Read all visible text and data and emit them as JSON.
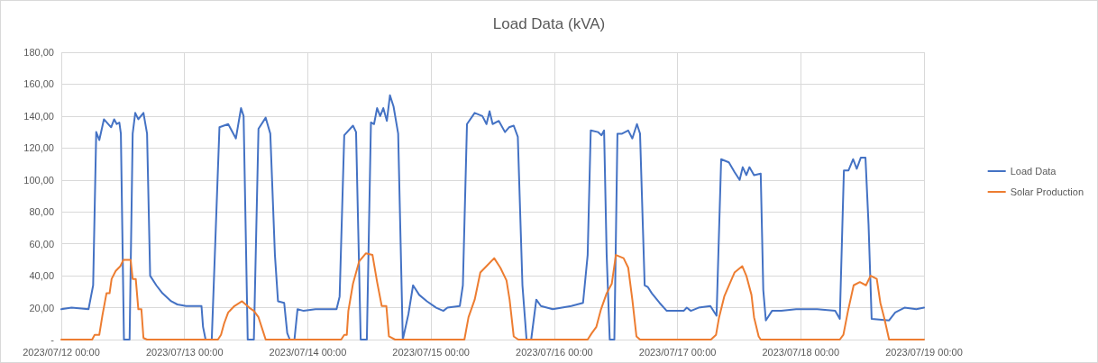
{
  "chart_data": {
    "type": "line",
    "title": "Load Data (kVA)",
    "xlim": [
      "2023-07-12T00:00",
      "2023-07-19T00:00"
    ],
    "xticks": [
      {
        "value": "2023-07-12T00:00",
        "label": "2023/07/12 00:00"
      },
      {
        "value": "2023-07-13T00:00",
        "label": "2023/07/13 00:00"
      },
      {
        "value": "2023-07-14T00:00",
        "label": "2023/07/14 00:00"
      },
      {
        "value": "2023-07-15T00:00",
        "label": "2023/07/15 00:00"
      },
      {
        "value": "2023-07-16T00:00",
        "label": "2023/07/16 00:00"
      },
      {
        "value": "2023-07-17T00:00",
        "label": "2023/07/17 00:00"
      },
      {
        "value": "2023-07-18T00:00",
        "label": "2023/07/18 00:00"
      },
      {
        "value": "2023-07-19T00:00",
        "label": "2023/07/19 00:00"
      }
    ],
    "ylim": [
      0,
      180
    ],
    "yticks": [
      {
        "value": 0,
        "label": "-"
      },
      {
        "value": 20,
        "label": "20,00"
      },
      {
        "value": 40,
        "label": "40,00"
      },
      {
        "value": 60,
        "label": "60,00"
      },
      {
        "value": 80,
        "label": "80,00"
      },
      {
        "value": 100,
        "label": "100,00"
      },
      {
        "value": 120,
        "label": "120,00"
      },
      {
        "value": 140,
        "label": "140,00"
      },
      {
        "value": 160,
        "label": "160,00"
      },
      {
        "value": 180,
        "label": "180,00"
      }
    ],
    "grid": true,
    "legend": "right",
    "marker": "none",
    "line_style": "solid",
    "series": [
      {
        "name": "Load Data",
        "color": "#4472c4",
        "x": [
          "2023-07-12T00:00",
          "2023-07-12T02:00",
          "2023-07-12T05:18",
          "2023-07-12T06:12",
          "2023-07-12T06:48",
          "2023-07-12T07:24",
          "2023-07-12T08:18",
          "2023-07-12T09:42",
          "2023-07-12T10:18",
          "2023-07-12T10:48",
          "2023-07-12T11:18",
          "2023-07-12T11:36",
          "2023-07-12T12:12",
          "2023-07-12T13:18",
          "2023-07-12T13:54",
          "2023-07-12T14:24",
          "2023-07-12T15:00",
          "2023-07-12T16:00",
          "2023-07-12T16:42",
          "2023-07-12T17:18",
          "2023-07-12T18:30",
          "2023-07-12T19:42",
          "2023-07-12T21:24",
          "2023-07-12T22:36",
          "2023-07-13T00:18",
          "2023-07-13T03:18",
          "2023-07-13T03:36",
          "2023-07-13T04:06",
          "2023-07-13T05:18",
          "2023-07-13T06:48",
          "2023-07-13T08:30",
          "2023-07-13T10:00",
          "2023-07-13T11:00",
          "2023-07-13T11:30",
          "2023-07-13T12:18",
          "2023-07-13T13:30",
          "2023-07-13T14:24",
          "2023-07-13T15:48",
          "2023-07-13T16:42",
          "2023-07-13T17:36",
          "2023-07-13T18:12",
          "2023-07-13T19:24",
          "2023-07-13T20:00",
          "2023-07-13T20:30",
          "2023-07-13T21:24",
          "2023-07-13T22:00",
          "2023-07-13T23:12",
          "2023-07-14T01:30",
          "2023-07-14T05:36",
          "2023-07-14T06:12",
          "2023-07-14T07:06",
          "2023-07-14T08:48",
          "2023-07-14T09:24",
          "2023-07-14T10:18",
          "2023-07-14T11:30",
          "2023-07-14T12:18",
          "2023-07-14T12:54",
          "2023-07-14T13:30",
          "2023-07-14T14:06",
          "2023-07-14T14:42",
          "2023-07-14T15:24",
          "2023-07-14T16:00",
          "2023-07-14T16:42",
          "2023-07-14T17:36",
          "2023-07-14T18:30",
          "2023-07-14T19:36",
          "2023-07-14T20:30",
          "2023-07-14T21:42",
          "2023-07-14T23:12",
          "2023-07-15T01:00",
          "2023-07-15T02:24",
          "2023-07-15T03:12",
          "2023-07-15T05:36",
          "2023-07-15T06:12",
          "2023-07-15T07:00",
          "2023-07-15T08:30",
          "2023-07-15T10:00",
          "2023-07-15T10:48",
          "2023-07-15T11:24",
          "2023-07-15T12:00",
          "2023-07-15T13:12",
          "2023-07-15T14:24",
          "2023-07-15T15:12",
          "2023-07-15T16:06",
          "2023-07-15T16:54",
          "2023-07-15T17:48",
          "2023-07-15T18:36",
          "2023-07-15T19:30",
          "2023-07-15T20:30",
          "2023-07-15T21:24",
          "2023-07-15T23:42",
          "2023-07-16T03:18",
          "2023-07-16T05:36",
          "2023-07-16T06:30",
          "2023-07-16T07:06",
          "2023-07-16T08:30",
          "2023-07-16T09:12",
          "2023-07-16T09:42",
          "2023-07-16T10:12",
          "2023-07-16T10:48",
          "2023-07-16T11:42",
          "2023-07-16T12:18",
          "2023-07-16T13:12",
          "2023-07-16T14:24",
          "2023-07-16T15:12",
          "2023-07-16T16:06",
          "2023-07-16T16:42",
          "2023-07-16T17:36",
          "2023-07-16T18:12",
          "2023-07-16T19:00",
          "2023-07-16T20:30",
          "2023-07-16T21:54",
          "2023-07-17T01:12",
          "2023-07-17T01:48",
          "2023-07-17T02:36",
          "2023-07-17T04:06",
          "2023-07-17T06:24",
          "2023-07-17T07:36",
          "2023-07-17T08:30",
          "2023-07-17T10:00",
          "2023-07-17T11:06",
          "2023-07-17T12:06",
          "2023-07-17T12:42",
          "2023-07-17T13:24",
          "2023-07-17T14:00",
          "2023-07-17T14:54",
          "2023-07-17T16:12",
          "2023-07-17T16:42",
          "2023-07-17T17:12",
          "2023-07-17T18:24",
          "2023-07-17T20:12",
          "2023-07-17T23:06",
          "2023-07-18T03:12",
          "2023-07-18T06:42",
          "2023-07-18T07:36",
          "2023-07-18T08:24",
          "2023-07-18T09:18",
          "2023-07-18T10:12",
          "2023-07-18T10:54",
          "2023-07-18T11:42",
          "2023-07-18T12:36",
          "2023-07-18T13:12",
          "2023-07-18T13:48",
          "2023-07-18T17:12",
          "2023-07-18T18:24",
          "2023-07-18T20:12",
          "2023-07-18T22:30",
          "2023-07-19T00:00"
        ],
        "values": [
          19,
          20,
          19,
          34,
          130,
          125,
          138,
          133,
          138,
          135,
          136,
          129,
          0,
          0,
          129,
          142,
          138,
          142,
          129,
          40,
          34,
          29,
          24,
          22,
          21,
          21,
          8,
          0,
          0,
          133,
          135,
          126,
          145,
          140,
          0,
          0,
          132,
          139,
          129,
          53,
          24,
          23,
          4,
          0,
          0,
          19,
          18,
          19,
          19,
          27,
          128,
          134,
          130,
          0,
          0,
          136,
          135,
          145,
          140,
          145,
          137,
          153,
          146,
          129,
          0,
          16,
          34,
          28,
          24,
          20,
          18,
          20,
          21,
          34,
          135,
          142,
          140,
          135,
          143,
          135,
          137,
          130,
          133,
          134,
          127,
          34,
          0,
          0,
          25,
          21,
          19,
          21,
          23,
          53,
          131,
          130,
          128,
          131,
          53,
          0,
          0,
          129,
          129,
          131,
          126,
          135,
          129,
          34,
          33,
          29,
          23,
          18,
          18,
          20,
          18,
          20,
          21,
          15,
          113,
          111,
          105,
          100,
          108,
          103,
          108,
          103,
          104,
          31,
          12,
          18,
          18,
          19,
          19,
          18,
          13,
          106,
          106,
          113,
          107,
          114,
          114,
          72,
          13,
          12,
          17,
          20,
          19,
          20
        ]
      },
      {
        "name": "Solar Production",
        "color": "#ed7d31",
        "x": [
          "2023-07-12T00:00",
          "2023-07-12T06:00",
          "2023-07-12T06:30",
          "2023-07-12T07:24",
          "2023-07-12T08:00",
          "2023-07-12T08:48",
          "2023-07-12T09:24",
          "2023-07-12T09:48",
          "2023-07-12T10:36",
          "2023-07-12T11:30",
          "2023-07-12T12:06",
          "2023-07-12T13:30",
          "2023-07-12T13:54",
          "2023-07-12T14:30",
          "2023-07-12T15:00",
          "2023-07-12T15:36",
          "2023-07-12T16:00",
          "2023-07-12T16:42",
          "2023-07-13T06:30",
          "2023-07-13T07:06",
          "2023-07-13T07:42",
          "2023-07-13T08:30",
          "2023-07-13T09:42",
          "2023-07-13T11:12",
          "2023-07-13T12:36",
          "2023-07-13T13:30",
          "2023-07-13T14:24",
          "2023-07-13T15:18",
          "2023-07-13T15:48",
          "2023-07-14T06:30",
          "2023-07-14T07:06",
          "2023-07-14T07:36",
          "2023-07-14T07:54",
          "2023-07-14T08:48",
          "2023-07-14T10:00",
          "2023-07-14T11:18",
          "2023-07-14T12:36",
          "2023-07-14T13:30",
          "2023-07-14T14:24",
          "2023-07-14T15:18",
          "2023-07-14T15:48",
          "2023-07-14T17:00",
          "2023-07-15T06:30",
          "2023-07-15T07:18",
          "2023-07-15T08:30",
          "2023-07-15T09:36",
          "2023-07-15T10:48",
          "2023-07-15T12:18",
          "2023-07-15T13:30",
          "2023-07-15T14:42",
          "2023-07-15T15:18",
          "2023-07-15T16:06",
          "2023-07-15T17:00",
          "2023-07-16T06:30",
          "2023-07-16T07:18",
          "2023-07-16T08:12",
          "2023-07-16T09:06",
          "2023-07-16T10:12",
          "2023-07-16T11:12",
          "2023-07-16T12:00",
          "2023-07-16T13:30",
          "2023-07-16T14:24",
          "2023-07-16T15:12",
          "2023-07-16T16:00",
          "2023-07-16T16:42",
          "2023-07-17T06:30",
          "2023-07-17T07:30",
          "2023-07-17T08:06",
          "2023-07-17T09:06",
          "2023-07-17T10:18",
          "2023-07-17T11:06",
          "2023-07-17T12:36",
          "2023-07-17T13:24",
          "2023-07-17T14:24",
          "2023-07-17T14:54",
          "2023-07-17T15:48",
          "2023-07-17T16:12",
          "2023-07-18T07:36",
          "2023-07-18T08:18",
          "2023-07-18T09:12",
          "2023-07-18T10:18",
          "2023-07-18T11:30",
          "2023-07-18T12:42",
          "2023-07-18T13:36",
          "2023-07-18T14:48",
          "2023-07-18T15:30",
          "2023-07-18T16:18",
          "2023-07-18T17:12",
          "2023-07-19T00:00"
        ],
        "values": [
          0,
          0,
          3,
          3,
          15,
          29,
          29,
          38,
          43,
          46,
          50,
          50,
          38,
          38,
          19,
          19,
          1,
          0,
          0,
          3,
          10,
          17,
          21,
          24,
          20,
          18,
          14,
          5,
          0,
          0,
          3,
          3,
          18,
          35,
          49,
          54,
          53,
          36,
          21,
          21,
          2,
          0,
          0,
          14,
          25,
          42,
          46,
          51,
          45,
          37,
          25,
          2,
          0,
          0,
          4,
          8,
          19,
          29,
          35,
          53,
          51,
          45,
          25,
          2,
          0,
          0,
          3,
          14,
          27,
          36,
          42,
          46,
          40,
          28,
          14,
          2,
          0,
          0,
          3,
          18,
          34,
          36,
          34,
          40,
          38,
          23,
          13,
          0,
          0
        ]
      }
    ]
  }
}
